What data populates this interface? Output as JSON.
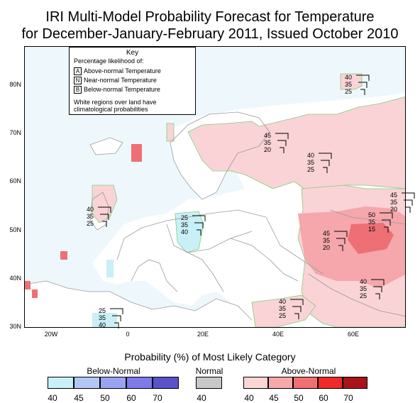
{
  "title_line1": "IRI Multi-Model Probability Forecast for Temperature",
  "title_line2": "for December-January-February 2011, Issued October 2010",
  "lat_labels": [
    "80N",
    "70N",
    "60N",
    "50N",
    "40N",
    "30N"
  ],
  "lon_labels": [
    "20W",
    "0",
    "20E",
    "40E",
    "60E"
  ],
  "key": {
    "title": "Key",
    "subtitle": "Percentage likelihood of:",
    "rows": [
      {
        "letter": "A",
        "label": "Above-normal Temperature"
      },
      {
        "letter": "N",
        "label": "Near-normal Temperature"
      },
      {
        "letter": "B",
        "label": "Below-normal Temperature"
      }
    ],
    "note_line1": "White regions over land have",
    "note_line2": "climatological probabilities"
  },
  "stacks": [
    {
      "name": "stack-north-barents",
      "values": [
        "40",
        "35",
        "25"
      ]
    },
    {
      "name": "stack-north-russia",
      "values": [
        "45",
        "35",
        "20"
      ]
    },
    {
      "name": "stack-west-siberia",
      "values": [
        "40",
        "35",
        "25"
      ]
    },
    {
      "name": "stack-far-east",
      "values": [
        "45",
        "35",
        "20"
      ]
    },
    {
      "name": "stack-central-asia",
      "values": [
        "50",
        "35",
        "15"
      ]
    },
    {
      "name": "stack-caspian",
      "values": [
        "45",
        "35",
        "20"
      ]
    },
    {
      "name": "stack-british-isles",
      "values": [
        "40",
        "35",
        "25"
      ]
    },
    {
      "name": "stack-central-europe",
      "values": [
        "25",
        "35",
        "40"
      ]
    },
    {
      "name": "stack-iran-afghanistan",
      "values": [
        "40",
        "35",
        "25"
      ]
    },
    {
      "name": "stack-arabia",
      "values": [
        "40",
        "35",
        "25"
      ]
    },
    {
      "name": "stack-north-africa",
      "values": [
        "25",
        "35",
        "40"
      ]
    }
  ],
  "legend": {
    "title": "Probability (%) of Most Likely Category",
    "below_label": "Below-Normal",
    "normal_label": "Normal",
    "above_label": "Above-Normal",
    "below_ticks": [
      "40",
      "45",
      "50",
      "60",
      "70"
    ],
    "normal_ticks": [
      "40"
    ],
    "above_ticks": [
      "40",
      "45",
      "50",
      "60",
      "70"
    ],
    "below_colors": [
      "#c8f0f6",
      "#b2c8f4",
      "#9aa3f0",
      "#7c7be8",
      "#5a52c8"
    ],
    "normal_color": "#c8c8c8",
    "above_colors": [
      "#fdd5d5",
      "#f7a9aa",
      "#f27072",
      "#f02a2a",
      "#a8141a"
    ]
  },
  "colors": {
    "above40": "#fad3d6",
    "above45": "#f5a7ab",
    "above50": "#ee6f74",
    "below40": "#c8f0f6",
    "ocean": "#eef8fc",
    "land": "#ffffff",
    "border": "#9a9a9a",
    "region_edge": "#7fcf7a"
  }
}
